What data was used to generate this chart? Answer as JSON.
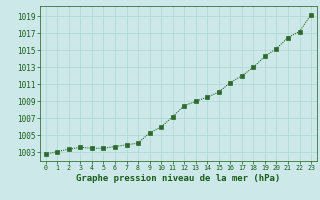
{
  "x": [
    0,
    1,
    2,
    3,
    4,
    5,
    6,
    7,
    8,
    9,
    10,
    11,
    12,
    13,
    14,
    15,
    16,
    17,
    18,
    19,
    20,
    21,
    22,
    23
  ],
  "y": [
    1002.8,
    1003.1,
    1003.4,
    1003.6,
    1003.5,
    1003.5,
    1003.7,
    1003.9,
    1004.1,
    1005.3,
    1006.0,
    1007.2,
    1008.5,
    1009.0,
    1009.5,
    1010.1,
    1011.2,
    1012.0,
    1013.0,
    1014.3,
    1015.2,
    1016.5,
    1017.2,
    1019.2
  ],
  "xlim": [
    -0.5,
    23.5
  ],
  "ylim": [
    1002.0,
    1020.2
  ],
  "yticks": [
    1003,
    1005,
    1007,
    1009,
    1011,
    1013,
    1015,
    1017,
    1019
  ],
  "xticks": [
    0,
    1,
    2,
    3,
    4,
    5,
    6,
    7,
    8,
    9,
    10,
    11,
    12,
    13,
    14,
    15,
    16,
    17,
    18,
    19,
    20,
    21,
    22,
    23
  ],
  "line_color": "#2d6a2d",
  "marker_color": "#2d6a2d",
  "bg_color": "#cce8e8",
  "grid_color": "#b0d4d4",
  "xlabel": "Graphe pression niveau de la mer (hPa)",
  "xlabel_color": "#1a5c1a",
  "tick_color": "#1a5c1a"
}
